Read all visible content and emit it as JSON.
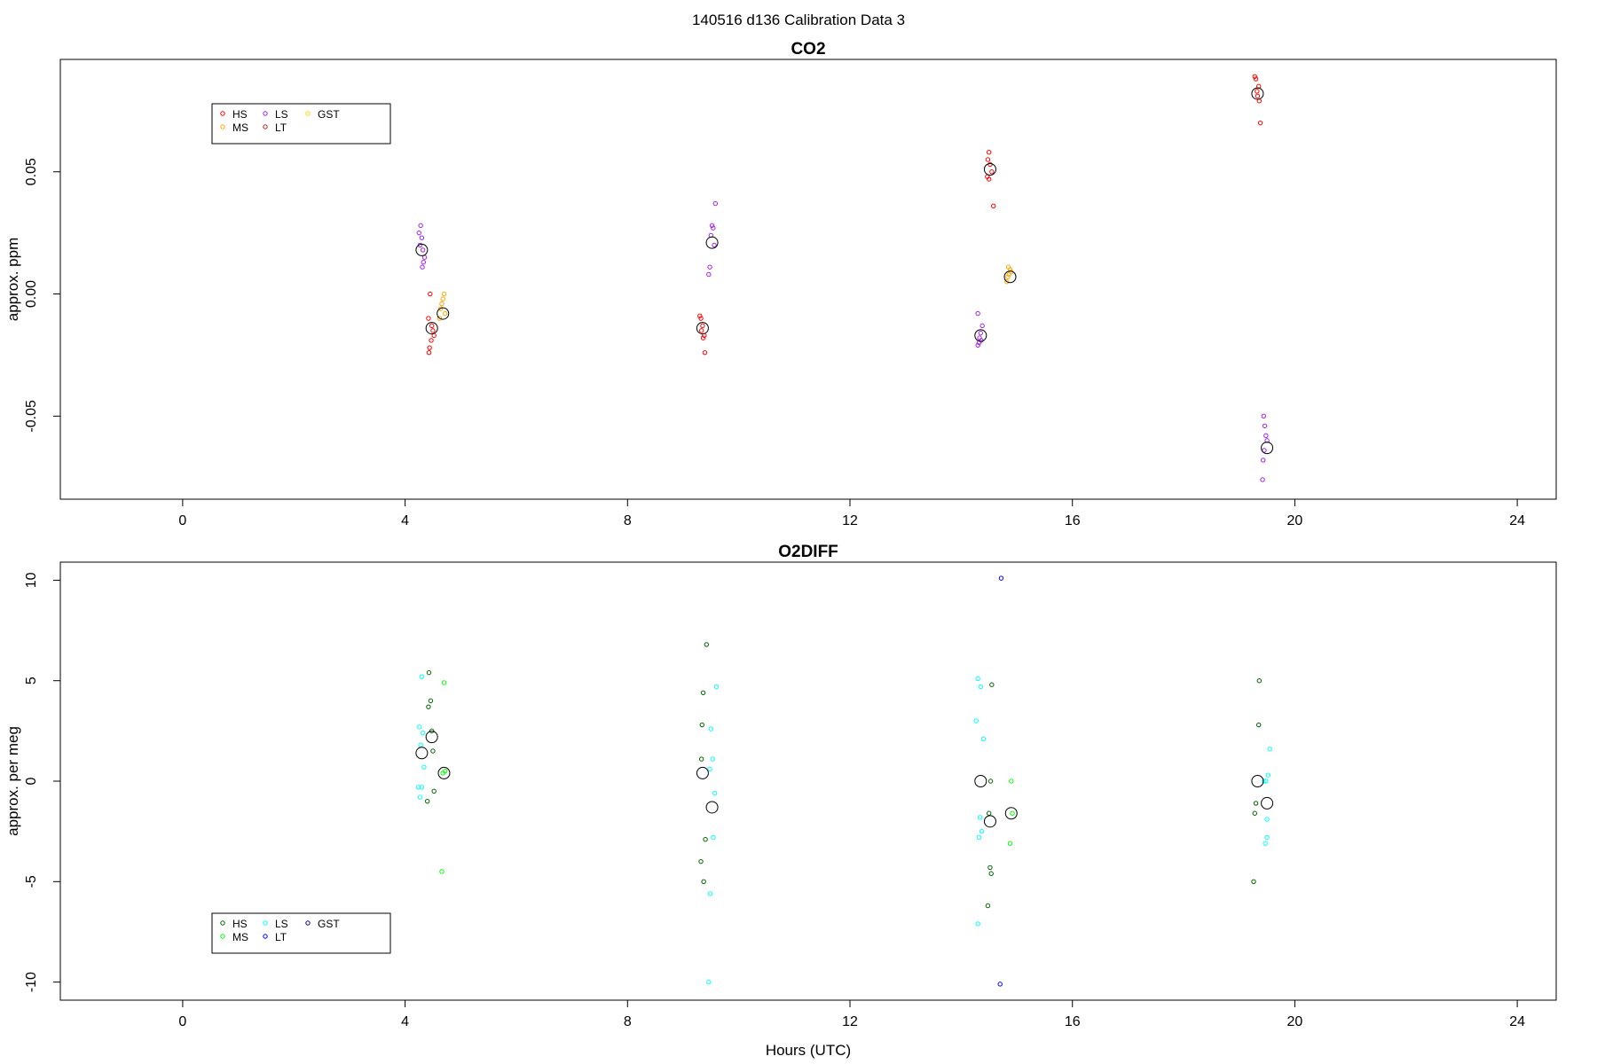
{
  "figure": {
    "title": "140516   d136   Calibration Data 3"
  },
  "chart_data": [
    {
      "type": "scatter",
      "title": "CO2",
      "xlabel": "",
      "ylabel": "approx. ppm",
      "xlim": [
        -2.2,
        24.7
      ],
      "ylim": [
        -0.084,
        0.096
      ],
      "x_ticks": [
        0,
        4,
        8,
        12,
        16,
        20,
        24
      ],
      "y_ticks": [
        -0.05,
        0.0,
        0.05
      ],
      "y_tick_labels": [
        "-0.05",
        "0.00",
        "0.05"
      ],
      "grid": false,
      "legend": {
        "position": "top-left",
        "entries": [
          {
            "label": "HS",
            "color": "#ff0000"
          },
          {
            "label": "MS",
            "color": "#ffa500"
          },
          {
            "label": "LS",
            "color": "#a020f0"
          },
          {
            "label": "LT",
            "color": "#b22222"
          },
          {
            "label": "GST",
            "color": "#ffd700"
          }
        ]
      },
      "series": [
        {
          "color": "#ff0000",
          "points": [
            [
              4.45,
              0.0
            ],
            [
              4.42,
              -0.01
            ],
            [
              4.48,
              -0.013
            ],
            [
              4.5,
              -0.015
            ],
            [
              4.52,
              -0.017
            ],
            [
              4.47,
              -0.019
            ],
            [
              4.44,
              -0.022
            ],
            [
              4.43,
              -0.024
            ],
            [
              9.3,
              -0.009
            ],
            [
              9.32,
              -0.01
            ],
            [
              9.35,
              -0.013
            ],
            [
              9.33,
              -0.015
            ],
            [
              9.38,
              -0.017
            ],
            [
              9.36,
              -0.018
            ],
            [
              9.39,
              -0.024
            ],
            [
              14.5,
              0.058
            ],
            [
              14.48,
              0.055
            ],
            [
              14.52,
              0.053
            ],
            [
              14.55,
              0.05
            ],
            [
              14.47,
              0.048
            ],
            [
              14.5,
              0.047
            ],
            [
              14.58,
              0.036
            ],
            [
              19.28,
              0.089
            ],
            [
              19.3,
              0.088
            ],
            [
              19.35,
              0.085
            ],
            [
              19.32,
              0.083
            ],
            [
              19.33,
              0.081
            ],
            [
              19.36,
              0.079
            ],
            [
              19.38,
              0.07
            ]
          ]
        },
        {
          "color": "#ffa500",
          "points": [
            [
              4.7,
              0.0
            ],
            [
              4.68,
              -0.002
            ],
            [
              4.66,
              -0.004
            ],
            [
              4.64,
              -0.006
            ],
            [
              4.72,
              -0.008
            ],
            [
              4.62,
              -0.01
            ],
            [
              14.85,
              0.011
            ],
            [
              14.88,
              0.01
            ],
            [
              14.9,
              0.009
            ],
            [
              14.86,
              0.008
            ],
            [
              14.84,
              0.007
            ],
            [
              14.82,
              0.005
            ]
          ]
        },
        {
          "color": "#a020f0",
          "points": [
            [
              4.28,
              0.028
            ],
            [
              4.25,
              0.025
            ],
            [
              4.3,
              0.023
            ],
            [
              4.27,
              0.02
            ],
            [
              4.32,
              0.018
            ],
            [
              4.35,
              0.015
            ],
            [
              4.33,
              0.013
            ],
            [
              4.31,
              0.011
            ],
            [
              9.58,
              0.037
            ],
            [
              9.52,
              0.028
            ],
            [
              9.54,
              0.027
            ],
            [
              9.5,
              0.024
            ],
            [
              9.56,
              0.02
            ],
            [
              9.48,
              0.011
            ],
            [
              9.46,
              0.008
            ],
            [
              14.3,
              -0.008
            ],
            [
              14.38,
              -0.013
            ],
            [
              14.35,
              -0.016
            ],
            [
              14.33,
              -0.018
            ],
            [
              14.36,
              -0.019
            ],
            [
              14.32,
              -0.02
            ],
            [
              14.3,
              -0.021
            ],
            [
              19.44,
              -0.05
            ],
            [
              19.46,
              -0.054
            ],
            [
              19.48,
              -0.058
            ],
            [
              19.5,
              -0.06
            ],
            [
              19.45,
              -0.064
            ],
            [
              19.43,
              -0.068
            ],
            [
              19.42,
              -0.076
            ]
          ]
        }
      ],
      "means": [
        [
          4.3,
          0.018
        ],
        [
          4.48,
          -0.014
        ],
        [
          4.68,
          -0.008
        ],
        [
          9.35,
          -0.014
        ],
        [
          9.52,
          0.021
        ],
        [
          14.35,
          -0.017
        ],
        [
          14.52,
          0.051
        ],
        [
          14.88,
          0.007
        ],
        [
          19.33,
          0.082
        ],
        [
          19.5,
          -0.063
        ]
      ]
    },
    {
      "type": "scatter",
      "title": "O2DIFF",
      "xlabel": "Hours (UTC)",
      "ylabel": "approx. per meg",
      "xlim": [
        -2.2,
        24.7
      ],
      "ylim": [
        -10.9,
        10.9
      ],
      "x_ticks": [
        0,
        4,
        8,
        12,
        16,
        20,
        24
      ],
      "y_ticks": [
        -10,
        -5,
        0,
        5,
        10
      ],
      "y_tick_labels": [
        "-10",
        "-5",
        "0",
        "5",
        "10"
      ],
      "grid": false,
      "legend": {
        "position": "bottom-left",
        "entries": [
          {
            "label": "HS",
            "color": "#006400"
          },
          {
            "label": "MS",
            "color": "#00ff00"
          },
          {
            "label": "LS",
            "color": "#00ffff"
          },
          {
            "label": "LT",
            "color": "#0000ff"
          },
          {
            "label": "GST",
            "color": "#00008b"
          }
        ]
      },
      "series": [
        {
          "color": "#006400",
          "points": [
            [
              4.43,
              5.4
            ],
            [
              4.46,
              4.0
            ],
            [
              4.42,
              3.7
            ],
            [
              4.48,
              2.5
            ],
            [
              4.5,
              1.5
            ],
            [
              4.52,
              -0.5
            ],
            [
              4.4,
              -1.0
            ],
            [
              9.42,
              6.8
            ],
            [
              9.36,
              4.4
            ],
            [
              9.34,
              2.8
            ],
            [
              9.33,
              1.1
            ],
            [
              9.4,
              -2.9
            ],
            [
              9.32,
              -4.0
            ],
            [
              9.37,
              -5.0
            ],
            [
              14.55,
              4.8
            ],
            [
              14.53,
              0.0
            ],
            [
              14.5,
              -1.6
            ],
            [
              14.52,
              -4.3
            ],
            [
              14.54,
              -4.6
            ],
            [
              14.48,
              -6.2
            ],
            [
              19.36,
              5.0
            ],
            [
              19.35,
              2.8
            ],
            [
              19.3,
              -1.1
            ],
            [
              19.28,
              -1.6
            ],
            [
              19.26,
              -5.0
            ]
          ]
        },
        {
          "color": "#00ff00",
          "points": [
            [
              4.7,
              4.9
            ],
            [
              4.72,
              0.5
            ],
            [
              4.68,
              0.4
            ],
            [
              4.66,
              -4.5
            ],
            [
              14.9,
              0.0
            ],
            [
              14.92,
              -1.6
            ],
            [
              14.88,
              -3.1
            ]
          ]
        },
        {
          "color": "#00ffff",
          "points": [
            [
              4.3,
              5.2
            ],
            [
              4.26,
              2.7
            ],
            [
              4.32,
              2.4
            ],
            [
              4.28,
              1.8
            ],
            [
              4.34,
              0.7
            ],
            [
              4.24,
              -0.3
            ],
            [
              4.3,
              -0.3
            ],
            [
              4.27,
              -0.8
            ],
            [
              9.6,
              4.7
            ],
            [
              9.5,
              2.6
            ],
            [
              9.53,
              1.1
            ],
            [
              9.48,
              0.6
            ],
            [
              9.57,
              -0.6
            ],
            [
              9.54,
              -2.8
            ],
            [
              9.49,
              -5.6
            ],
            [
              9.46,
              -10.0
            ],
            [
              14.3,
              5.1
            ],
            [
              14.35,
              4.7
            ],
            [
              14.27,
              3.0
            ],
            [
              14.4,
              2.1
            ],
            [
              14.34,
              -1.8
            ],
            [
              14.37,
              -2.5
            ],
            [
              14.32,
              -2.8
            ],
            [
              14.3,
              -7.1
            ],
            [
              19.55,
              1.6
            ],
            [
              19.52,
              0.3
            ],
            [
              19.48,
              0.0
            ],
            [
              19.45,
              0.0
            ],
            [
              19.5,
              -1.9
            ],
            [
              19.47,
              -3.1
            ],
            [
              19.5,
              -2.8
            ]
          ]
        },
        {
          "color": "#0000ff",
          "points": [
            [
              14.72,
              10.1
            ],
            [
              14.7,
              -10.1
            ]
          ]
        }
      ],
      "means": [
        [
          4.3,
          1.4
        ],
        [
          4.48,
          2.2
        ],
        [
          4.7,
          0.4
        ],
        [
          9.35,
          0.4
        ],
        [
          9.52,
          -1.3
        ],
        [
          14.35,
          0.0
        ],
        [
          14.52,
          -2.0
        ],
        [
          14.9,
          -1.6
        ],
        [
          19.33,
          0.0
        ],
        [
          19.5,
          -1.1
        ]
      ]
    }
  ]
}
